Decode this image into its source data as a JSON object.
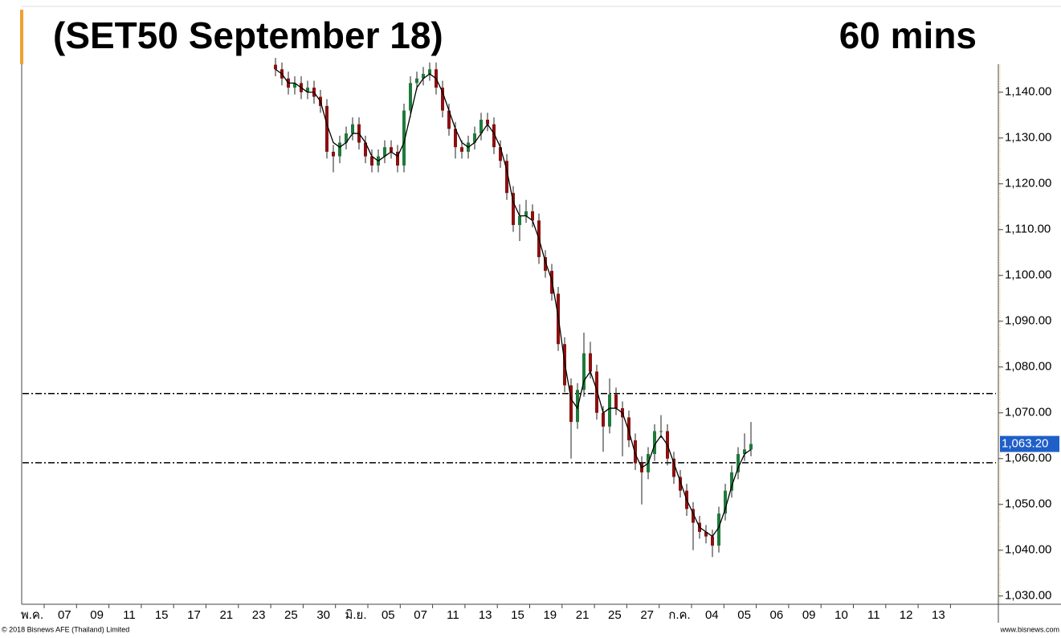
{
  "chart_data": {
    "type": "candlestick",
    "title": "(SET50 September 18)",
    "subtitle": "60 mins",
    "footer_left": "© 2018 Bisnews AFE (Thailand) Limited",
    "footer_right": "www.bisnews.com",
    "categories": [
      "พ.ค.",
      "07",
      "09",
      "11",
      "15",
      "17",
      "21",
      "23",
      "25",
      "30",
      "มิ.ย.",
      "05",
      "07",
      "11",
      "13",
      "15",
      "19",
      "21",
      "25",
      "27",
      "ก.ค.",
      "04",
      "05",
      "06",
      "09",
      "10",
      "11",
      "12",
      "13"
    ],
    "open": [
      1146,
      1145,
      1143,
      1141,
      1142,
      1140,
      1141,
      1139,
      1137,
      1127,
      1126,
      1129,
      1131,
      1133,
      1129,
      1126,
      1124,
      1126,
      1128,
      1127,
      1124,
      1136,
      1142,
      1143,
      1144,
      1145,
      1141,
      1136,
      1132,
      1128,
      1127,
      1129,
      1131,
      1134,
      1133,
      1128,
      1125,
      1118,
      1111,
      1113,
      1114,
      1112,
      1104,
      1101,
      1096,
      1085,
      1076,
      1068,
      1075,
      1083,
      1079,
      1070,
      1067,
      1074,
      1071,
      1069,
      1064,
      1059,
      1057,
      1061,
      1066,
      1066,
      1060,
      1056,
      1053,
      1049,
      1046,
      1044,
      1043,
      1041,
      1048,
      1053,
      1057,
      1061,
      1062
    ],
    "high": [
      1147.5,
      1146.5,
      1144.5,
      1143.5,
      1143.5,
      1142.5,
      1142.5,
      1140.5,
      1138.5,
      1128.5,
      1130.5,
      1132.5,
      1134.5,
      1134.5,
      1130.5,
      1127.5,
      1127.5,
      1129.5,
      1129.5,
      1128.5,
      1137.5,
      1143.5,
      1144.5,
      1145.5,
      1146.5,
      1146.5,
      1142.5,
      1137.5,
      1133.5,
      1129.5,
      1130.5,
      1132.5,
      1135.5,
      1135.5,
      1134.5,
      1129.5,
      1126.5,
      1119.5,
      1115.5,
      1116.5,
      1115.5,
      1113.5,
      1105.5,
      1102.5,
      1097.5,
      1086.5,
      1077.5,
      1076.5,
      1087.5,
      1085.5,
      1080.5,
      1071.5,
      1077.5,
      1075.5,
      1072.5,
      1070.5,
      1065.5,
      1060.5,
      1062.5,
      1067.5,
      1069.5,
      1067.5,
      1061.5,
      1057.5,
      1054.5,
      1050.5,
      1047.5,
      1045.5,
      1044.5,
      1049.5,
      1054.5,
      1058.5,
      1062.5,
      1065.5,
      1068
    ],
    "low": [
      1143.5,
      1141.5,
      1139.5,
      1139.5,
      1138.5,
      1138.5,
      1137.5,
      1135.5,
      1125.5,
      1122.5,
      1124.5,
      1127.5,
      1129.5,
      1127.5,
      1124.5,
      1122.5,
      1122.5,
      1124.5,
      1125.5,
      1122.5,
      1122.5,
      1134.5,
      1140.5,
      1141.5,
      1142.5,
      1139.5,
      1134.5,
      1130.5,
      1125.5,
      1125.5,
      1125.5,
      1127.5,
      1129.5,
      1131.5,
      1126.5,
      1123.5,
      1116.5,
      1109.5,
      1107.5,
      1111.5,
      1110.5,
      1102.5,
      1099.5,
      1094.5,
      1083.5,
      1074.5,
      1060,
      1066.5,
      1073.5,
      1077.5,
      1068.5,
      1061.5,
      1065.5,
      1069.5,
      1060.5,
      1062.5,
      1057.5,
      1050,
      1055.5,
      1059.5,
      1064.5,
      1058.5,
      1054.5,
      1051.5,
      1047.5,
      1040,
      1042.5,
      1041.5,
      1038.5,
      1039.5,
      1046.5,
      1051.5,
      1055.5,
      1059.5,
      1060.5
    ],
    "close": [
      1145,
      1143,
      1141,
      1142,
      1140,
      1141,
      1139,
      1137,
      1127,
      1126,
      1129,
      1131,
      1133,
      1129,
      1126,
      1124,
      1126,
      1128,
      1127,
      1124,
      1136,
      1142,
      1143,
      1144,
      1145,
      1141,
      1136,
      1132,
      1128,
      1127,
      1129,
      1131,
      1134,
      1133,
      1128,
      1125,
      1118,
      1111,
      1113,
      1114,
      1112,
      1104,
      1101,
      1096,
      1085,
      1076,
      1068,
      1075,
      1083,
      1079,
      1070,
      1067,
      1074,
      1071,
      1069,
      1064,
      1059,
      1057,
      1061,
      1066,
      1066,
      1060,
      1056,
      1053,
      1049,
      1046,
      1044,
      1043,
      1041,
      1048,
      1053,
      1057,
      1061,
      1062,
      1063.2
    ],
    "ma": [
      1145,
      1144,
      1142,
      1142,
      1141,
      1140,
      1140,
      1138,
      1133,
      1129,
      1128,
      1129,
      1131,
      1131,
      1129,
      1126,
      1125,
      1126,
      1127,
      1126,
      1129,
      1135,
      1141,
      1143,
      1144,
      1143,
      1140,
      1136,
      1132,
      1129,
      1128,
      1129,
      1131,
      1133,
      1131,
      1128,
      1123,
      1116,
      1113,
      1113,
      1112,
      1108,
      1103,
      1099,
      1091,
      1081,
      1073,
      1071,
      1077,
      1079,
      1075,
      1070,
      1071,
      1071,
      1070,
      1066,
      1061,
      1058,
      1059,
      1063,
      1065,
      1063,
      1059,
      1055,
      1051,
      1048,
      1045,
      1044,
      1043,
      1045,
      1049,
      1054,
      1058,
      1061,
      1062
    ],
    "up_color": "#1f7a3a",
    "down_color": "#8b1010",
    "ma_color": "#000000",
    "levels": [
      1074.2,
      1059.1
    ],
    "last_value": 1063.2,
    "last_label": "1,063.20",
    "ylim": [
      1028.2,
      1146.1
    ],
    "yticks": [
      {
        "value": 1030,
        "label": "1,030.00"
      },
      {
        "value": 1040,
        "label": "1,040.00"
      },
      {
        "value": 1050,
        "label": "1,050.00"
      },
      {
        "value": 1060,
        "label": "1,060.00"
      },
      {
        "value": 1070,
        "label": "1,070.00"
      },
      {
        "value": 1080,
        "label": "1,080.00"
      },
      {
        "value": 1090,
        "label": "1,090.00"
      },
      {
        "value": 1100,
        "label": "1,100.00"
      },
      {
        "value": 1110,
        "label": "1,110.00"
      },
      {
        "value": 1120,
        "label": "1,120.00"
      },
      {
        "value": 1130,
        "label": "1,130.00"
      },
      {
        "value": 1140,
        "label": "1,140.00"
      }
    ]
  }
}
